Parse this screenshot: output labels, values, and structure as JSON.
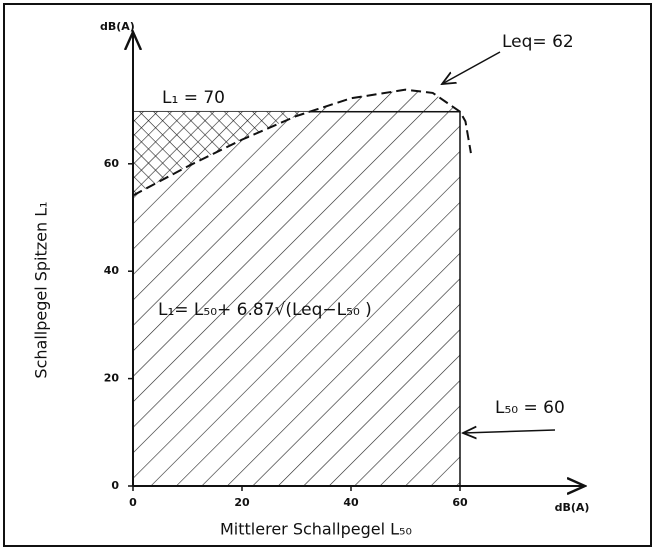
{
  "chart_data": {
    "type": "line",
    "x_unit": "dB(A)",
    "y_unit": "dB(A)",
    "xlabel": "Mittlerer Schallpegel L₅₀",
    "ylabel": "Schallpegel Spitzen L₁",
    "annotations": [
      "L₁ = 70",
      "Leq= 62",
      "L₅₀ = 60",
      "L₁= L₅₀+ 6.87√(Leq−L₅₀ )"
    ],
    "x": [
      0,
      10,
      20,
      30,
      40,
      50,
      55,
      60,
      61,
      62
    ],
    "series": [
      {
        "color": "#111111",
        "values": [
          54.1,
          59.5,
          64.5,
          68.9,
          72.2,
          73.8,
          73.2,
          69.7,
          67.9,
          62
        ]
      }
    ],
    "xlim": [
      0,
      82
    ],
    "ylim": [
      0,
      83
    ],
    "xticks": [
      0,
      20,
      40,
      60
    ],
    "yticks": [
      0,
      20,
      40,
      60
    ]
  }
}
